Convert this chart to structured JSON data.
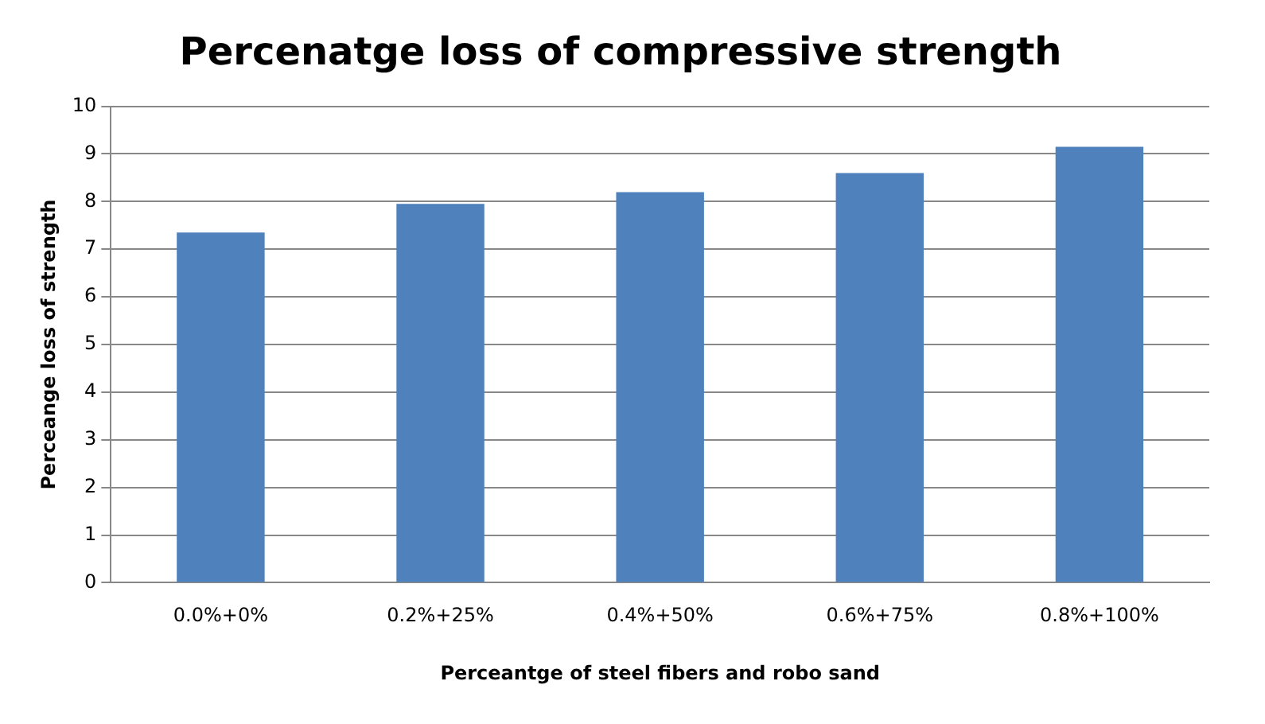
{
  "chart_data": {
    "type": "bar",
    "title": "Percenatge loss of compressive strength",
    "xlabel": "Perceantge of steel fibers and robo sand",
    "ylabel": "Perceange loss of strength",
    "categories": [
      "0.0%+0%",
      "0.2%+25%",
      "0.4%+50%",
      "0.6%+75%",
      "0.8%+100%"
    ],
    "values": [
      7.35,
      7.95,
      8.2,
      8.6,
      9.15
    ],
    "color": "#4f81bd",
    "ylim": [
      0,
      10
    ],
    "yticks": [
      0,
      1,
      2,
      3,
      4,
      5,
      6,
      7,
      8,
      9,
      10
    ],
    "grid": "y",
    "legend": false
  }
}
